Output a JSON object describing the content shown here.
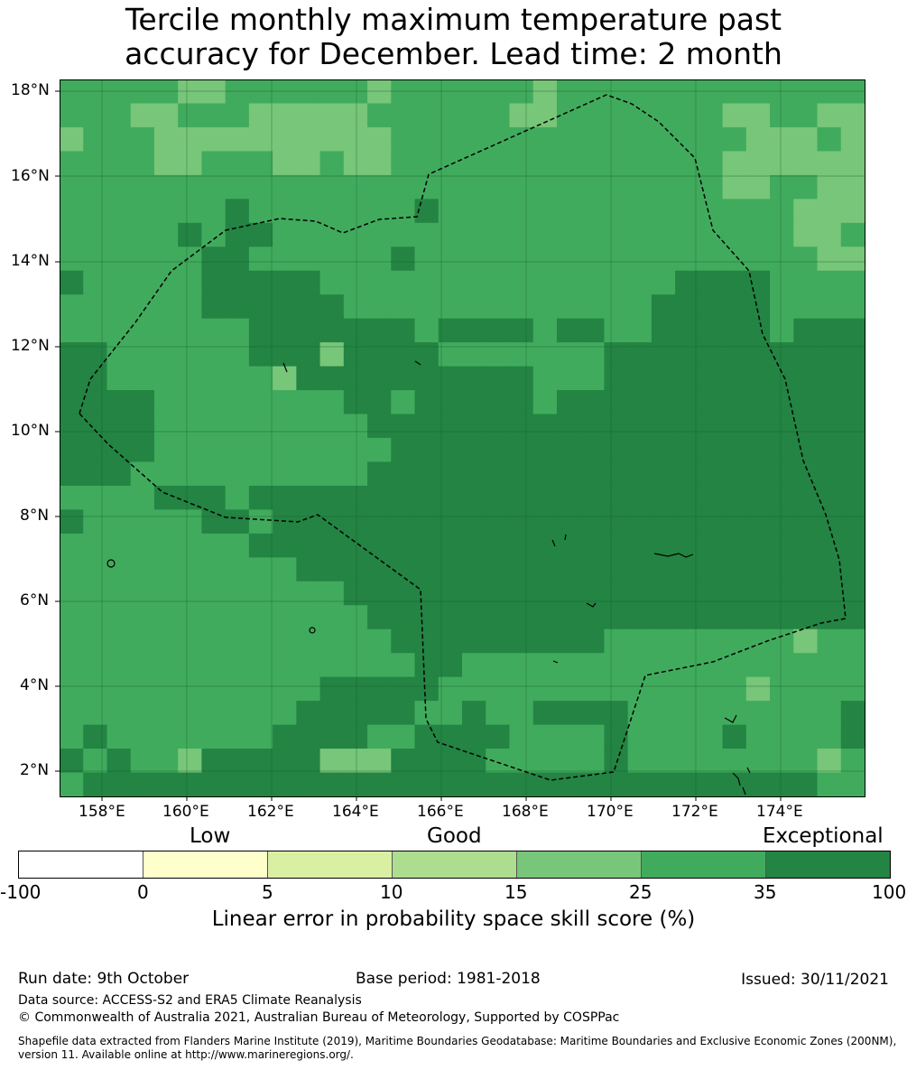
{
  "title": {
    "line1": "Tercile monthly maximum temperature past",
    "line2": "accuracy for December. Lead time: 2 month"
  },
  "map": {
    "lat_ticks": [
      "18°N",
      "16°N",
      "14°N",
      "12°N",
      "10°N",
      "8°N",
      "6°N",
      "4°N",
      "2°N"
    ],
    "lon_ticks": [
      "158°E",
      "160°E",
      "162°E",
      "164°E",
      "166°E",
      "168°E",
      "170°E",
      "172°E",
      "174°E"
    ],
    "colors": {
      "class_15_25": "#78c679",
      "class_25_35": "#41ab5d",
      "class_35_100": "#238443",
      "boundary": "#000000"
    }
  },
  "colorbar": {
    "categories": [
      "Low",
      "Good",
      "Exceptional"
    ],
    "ticks": [
      "-100",
      "0",
      "5",
      "10",
      "15",
      "25",
      "35",
      "100"
    ],
    "colors": [
      "#ffffff",
      "#ffffcc",
      "#d9f0a3",
      "#addd8e",
      "#78c679",
      "#41ab5d",
      "#238443"
    ],
    "label": "Linear error in probability space skill score (%)"
  },
  "footer": {
    "run_date": "Run date: 9th October",
    "base_period": "Base period: 1981-2018",
    "issued": "Issued: 30/11/2021",
    "data_source": "Data source: ACCESS-S2 and ERA5 Climate Reanalysis",
    "copyright": "© Commonwealth of Australia 2021, Australian Bureau of Meteorology, Supported by COSPPac",
    "shapefile_line1": "Shapefile data extracted from Flanders Marine Institute (2019), Maritime Boundaries Geodatabase: Maritime Boundaries and Exclusive Economic Zones (200NM),",
    "shapefile_line2": "version 11. Available online at http://www.marineregions.org/."
  }
}
